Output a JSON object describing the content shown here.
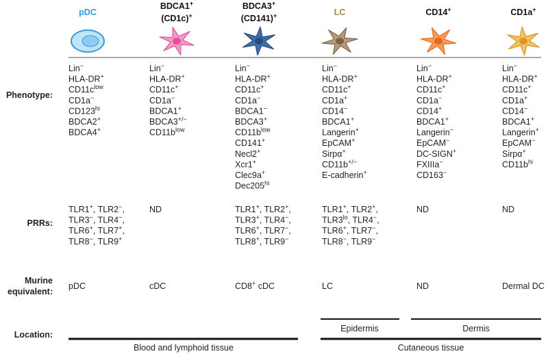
{
  "row_labels": [
    [
      "Phenotype:"
    ],
    [
      "PRRs:"
    ],
    [
      "Murine",
      "equivalent:"
    ],
    [
      "Location:"
    ]
  ],
  "columns": [
    {
      "header": [
        [
          "pDC"
        ]
      ],
      "phenotype": [
        [
          "Lin",
          "−"
        ],
        [
          "HLA-DR",
          "+"
        ],
        [
          "CD11c",
          "low"
        ],
        [
          "CD1a",
          "−"
        ],
        [
          "CD123",
          "hi"
        ],
        [
          "BDCA2",
          "+"
        ],
        [
          "BDCA4",
          "+"
        ]
      ],
      "prrs": [
        [
          "TLR1",
          "+",
          ", TLR2",
          "−",
          ","
        ],
        [
          "TLR3",
          "−",
          ", TLR4",
          "−",
          ","
        ],
        [
          "TLR6",
          "+",
          ", TLR7",
          "+",
          ","
        ],
        [
          "TLR8",
          "−",
          ", TLR9",
          "+"
        ]
      ],
      "murine": [
        [
          "pDC"
        ]
      ]
    },
    {
      "header": [
        [
          "BDCA1",
          "+"
        ],
        [
          "(CD1c)",
          "+"
        ]
      ],
      "phenotype": [
        [
          "Lin",
          "−"
        ],
        [
          "HLA-DR",
          "+"
        ],
        [
          "CD11c",
          "+"
        ],
        [
          "CD1a",
          "−"
        ],
        [
          "BDCA1",
          "+"
        ],
        [
          "BDCA3",
          "+/−"
        ],
        [
          "CD11b",
          "low"
        ]
      ],
      "prrs": [
        [
          "ND"
        ]
      ],
      "murine": [
        [
          "cDC"
        ]
      ]
    },
    {
      "header": [
        [
          "BDCA3",
          "+"
        ],
        [
          "(CD141)",
          "+"
        ]
      ],
      "phenotype": [
        [
          "Lin",
          "−"
        ],
        [
          "HLA-DR",
          "+"
        ],
        [
          "CD11c",
          "+"
        ],
        [
          "CD1a",
          "−"
        ],
        [
          "BDCA1",
          "−"
        ],
        [
          "BDCA3",
          "+"
        ],
        [
          "CD11b",
          "low"
        ],
        [
          "CD141",
          "+"
        ],
        [
          "Necl2",
          "+"
        ],
        [
          "Xcr1",
          "+"
        ],
        [
          "Clec9a",
          "+"
        ],
        [
          "Dec205",
          "hi"
        ]
      ],
      "prrs": [
        [
          "TLR1",
          "+",
          ", TLR2",
          "+",
          ","
        ],
        [
          "TLR3",
          "+",
          ", TLR4",
          "−",
          ","
        ],
        [
          "TLR6",
          "+",
          ", TLR7",
          "−",
          ","
        ],
        [
          "TLR8",
          "+",
          ", TLR9",
          "−"
        ]
      ],
      "murine": [
        [
          "CD8",
          "+",
          " cDC"
        ]
      ]
    },
    {
      "header": [
        [
          "LC"
        ]
      ],
      "phenotype": [
        [
          "Lin",
          "−"
        ],
        [
          "HLA-DR",
          "+"
        ],
        [
          "CD11c",
          "+"
        ],
        [
          "CD1a",
          "+"
        ],
        [
          "CD14",
          "−"
        ],
        [
          "BDCA1",
          "+"
        ],
        [
          "Langerin",
          "+"
        ],
        [
          "EpCAM",
          "+"
        ],
        [
          "Sirpα",
          "+"
        ],
        [
          "CD11b",
          "+/−"
        ],
        [
          "E-cadherin",
          "+"
        ]
      ],
      "prrs": [
        [
          "TLR1",
          "+",
          ", TLR2",
          "+",
          ","
        ],
        [
          "TLR3",
          "lo",
          ", TLR4",
          "−",
          ","
        ],
        [
          "TLR6",
          "+",
          ", TLR7",
          "−",
          ","
        ],
        [
          "TLR8",
          "−",
          ", TLR9",
          "−"
        ]
      ],
      "murine": [
        [
          "LC"
        ]
      ]
    },
    {
      "header": [
        [
          "CD14",
          "+"
        ]
      ],
      "phenotype": [
        [
          "Lin",
          "−"
        ],
        [
          "HLA-DR",
          "+"
        ],
        [
          "CD11c",
          "+"
        ],
        [
          "CD1a",
          "−"
        ],
        [
          "CD14",
          "+"
        ],
        [
          "BDCA1",
          "+"
        ],
        [
          "Langerin",
          "−"
        ],
        [
          "EpCAM",
          "−"
        ],
        [
          "DC-SIGN",
          "+"
        ],
        [
          "FXIIIa",
          "−"
        ],
        [
          "CD163",
          "−"
        ]
      ],
      "prrs": [
        [
          "ND"
        ]
      ],
      "murine": [
        [
          "ND"
        ]
      ]
    },
    {
      "header": [
        [
          "CD1a",
          "+"
        ]
      ],
      "phenotype": [
        [
          "Lin",
          "−"
        ],
        [
          "HLA-DR",
          "+"
        ],
        [
          "CD11c",
          "+"
        ],
        [
          "CD1a",
          "+"
        ],
        [
          "CD14",
          "−"
        ],
        [
          "BDCA1",
          "+"
        ],
        [
          "Langerin",
          "+"
        ],
        [
          "EpCAM",
          "−"
        ],
        [
          "Sirpα",
          "+"
        ],
        [
          "CD11b",
          "hi"
        ]
      ],
      "prrs": [
        [
          "ND"
        ]
      ],
      "murine": [
        [
          "Dermal DC"
        ]
      ]
    }
  ],
  "location": {
    "blood": "Blood and lymphoid tissue",
    "cutaneous": "Cutaneous tissue",
    "epidermis": "Epidermis",
    "dermis": "Dermis"
  }
}
